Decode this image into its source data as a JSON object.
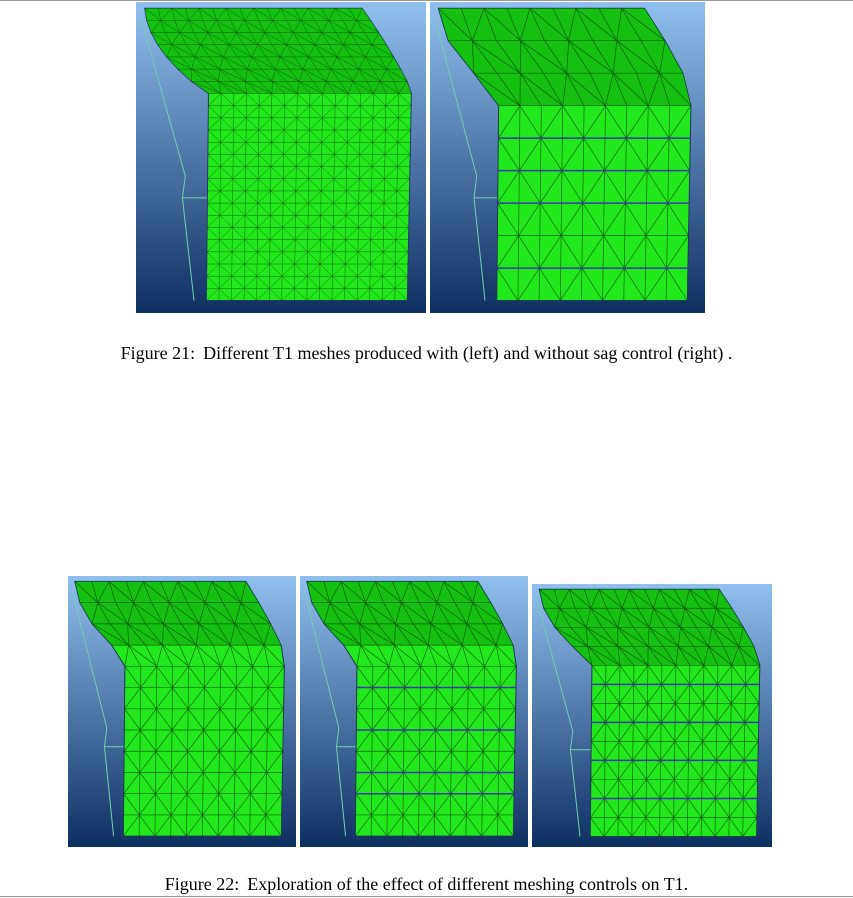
{
  "figures": [
    {
      "label": "Figure 21:",
      "caption": "Different T1 meshes produced with (left) and without sag control (right) .",
      "panels": [
        {
          "id": "fig21-left",
          "mesh": "fine",
          "cols": 16,
          "rows": 24
        },
        {
          "id": "fig21-right",
          "mesh": "coarse-banded",
          "cols": 9,
          "rows": 9
        }
      ]
    },
    {
      "label": "Figure 22:",
      "caption": "Exploration of the effect of different meshing controls on T1.",
      "panels": [
        {
          "id": "fig22-a",
          "mesh": "medium",
          "cols": 10,
          "rows": 12
        },
        {
          "id": "fig22-b",
          "mesh": "banded",
          "cols": 10,
          "rows": 12
        },
        {
          "id": "fig22-c",
          "mesh": "medium-banded",
          "cols": 12,
          "rows": 13
        }
      ]
    }
  ],
  "colors": {
    "background_top": "#8fc0f0",
    "background_bottom": "#0d2f62",
    "mesh_fill": "#21e81a",
    "mesh_fill_dark": "#12b812",
    "mesh_lines": "#0b3d0b",
    "frame_lines": "#6fd0b0",
    "band_lines": "#3a3aa8"
  }
}
